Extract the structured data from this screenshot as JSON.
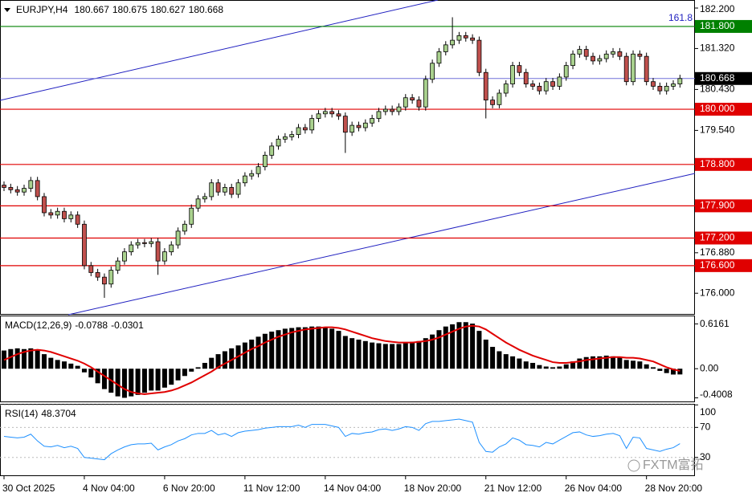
{
  "chart_data": [
    {
      "type": "candlestick",
      "symbol": "EURJPY,H4",
      "ohlc": [
        180.667,
        180.675,
        180.627,
        180.668
      ],
      "categories": [
        "30 Oct 2025",
        null,
        null,
        null,
        null,
        null,
        null,
        null,
        null,
        null,
        null,
        null,
        "4 Nov 04:00",
        null,
        null,
        null,
        null,
        null,
        null,
        null,
        null,
        null,
        null,
        null,
        "6 Nov 20:00",
        null,
        null,
        null,
        null,
        null,
        null,
        null,
        null,
        null,
        null,
        null,
        "11 Nov 12:00",
        null,
        null,
        null,
        null,
        null,
        null,
        null,
        null,
        null,
        null,
        null,
        "14 Nov 04:00",
        null,
        null,
        null,
        null,
        null,
        null,
        null,
        null,
        null,
        null,
        null,
        "18 Nov 20:00",
        null,
        null,
        null,
        null,
        null,
        null,
        null,
        null,
        null,
        null,
        null,
        "21 Nov 12:00",
        null,
        null,
        null,
        null,
        null,
        null,
        null,
        null,
        null,
        null,
        null,
        "26 Nov 04:00",
        null,
        null,
        null,
        null,
        null,
        null,
        null,
        null,
        null,
        null,
        null,
        "28 Nov 20:00",
        null,
        null,
        null,
        null,
        null
      ],
      "open": [
        178.35,
        178.3,
        178.25,
        178.2,
        178.28,
        178.45,
        178.1,
        177.75,
        177.7,
        177.78,
        177.62,
        177.7,
        177.5,
        176.6,
        176.45,
        176.35,
        176.2,
        176.5,
        176.7,
        176.9,
        177.05,
        177.1,
        177.08,
        177.12,
        176.7,
        176.9,
        177.05,
        177.35,
        177.5,
        177.85,
        178.05,
        178.1,
        178.4,
        178.2,
        178.3,
        178.15,
        178.4,
        178.55,
        178.6,
        178.75,
        179.0,
        179.2,
        179.35,
        179.4,
        179.45,
        179.6,
        179.55,
        179.8,
        179.9,
        179.95,
        179.9,
        179.85,
        179.5,
        179.65,
        179.6,
        179.7,
        179.8,
        179.95,
        180.0,
        179.95,
        180.05,
        180.25,
        180.2,
        180.05,
        180.65,
        181.0,
        181.25,
        181.4,
        181.5,
        181.6,
        181.55,
        181.5,
        180.8,
        180.2,
        180.1,
        180.35,
        180.55,
        180.95,
        180.8,
        180.55,
        180.5,
        180.4,
        180.6,
        180.5,
        180.7,
        180.95,
        181.2,
        181.3,
        181.15,
        181.05,
        181.1,
        181.2,
        181.25,
        181.15,
        180.6,
        181.2,
        181.15,
        180.6,
        180.5,
        180.4,
        180.5,
        180.55
      ],
      "high": [
        178.43,
        178.38,
        178.33,
        178.36,
        178.53,
        178.53,
        178.18,
        177.83,
        177.86,
        177.86,
        177.78,
        177.78,
        177.58,
        176.68,
        176.53,
        176.43,
        176.58,
        176.78,
        176.98,
        177.13,
        177.18,
        177.18,
        177.2,
        177.2,
        176.98,
        177.13,
        177.43,
        177.58,
        177.93,
        178.13,
        178.18,
        178.48,
        178.48,
        178.38,
        178.38,
        178.48,
        178.63,
        178.68,
        178.83,
        179.08,
        179.28,
        179.43,
        179.48,
        179.53,
        179.68,
        179.68,
        179.88,
        179.98,
        180.03,
        180.03,
        179.98,
        179.93,
        179.73,
        179.73,
        179.78,
        179.88,
        180.03,
        180.08,
        180.08,
        180.13,
        180.33,
        180.33,
        180.28,
        180.73,
        181.08,
        181.33,
        181.48,
        182.0,
        181.68,
        181.68,
        181.63,
        181.58,
        180.88,
        180.28,
        180.43,
        180.63,
        181.03,
        181.03,
        180.88,
        180.63,
        180.58,
        180.68,
        180.68,
        180.78,
        181.03,
        181.28,
        181.38,
        181.38,
        181.23,
        181.18,
        181.28,
        181.33,
        181.33,
        181.23,
        181.28,
        181.28,
        181.23,
        180.68,
        180.58,
        180.58,
        180.63,
        180.75
      ],
      "low": [
        178.22,
        178.17,
        178.12,
        178.12,
        178.2,
        178.02,
        177.67,
        177.62,
        177.62,
        177.54,
        177.54,
        177.42,
        176.52,
        176.37,
        176.27,
        175.9,
        176.12,
        176.42,
        176.62,
        176.82,
        176.97,
        177.0,
        177.0,
        176.4,
        176.62,
        176.82,
        176.97,
        177.27,
        177.42,
        177.77,
        177.97,
        178.02,
        178.12,
        178.12,
        178.07,
        178.07,
        178.32,
        178.47,
        178.52,
        178.67,
        178.92,
        179.12,
        179.27,
        179.32,
        179.37,
        179.47,
        179.47,
        179.72,
        179.82,
        179.82,
        179.77,
        179.05,
        179.42,
        179.52,
        179.52,
        179.62,
        179.72,
        179.87,
        179.87,
        179.87,
        179.97,
        180.12,
        179.97,
        179.97,
        180.57,
        180.92,
        181.17,
        181.32,
        181.42,
        181.47,
        181.42,
        180.72,
        179.8,
        180.02,
        180.02,
        180.27,
        180.47,
        180.72,
        180.47,
        180.42,
        180.32,
        180.32,
        180.42,
        180.42,
        180.62,
        180.87,
        181.12,
        181.07,
        180.97,
        180.97,
        181.02,
        181.12,
        181.07,
        180.52,
        180.52,
        181.07,
        180.52,
        180.42,
        180.32,
        180.32,
        180.42,
        180.47
      ],
      "close": [
        178.3,
        178.25,
        178.2,
        178.28,
        178.45,
        178.1,
        177.75,
        177.7,
        177.78,
        177.62,
        177.7,
        177.5,
        176.6,
        176.45,
        176.35,
        176.2,
        176.5,
        176.7,
        176.9,
        177.05,
        177.1,
        177.08,
        177.12,
        176.7,
        176.9,
        177.05,
        177.35,
        177.5,
        177.85,
        178.05,
        178.1,
        178.4,
        178.2,
        178.3,
        178.15,
        178.4,
        178.55,
        178.6,
        178.75,
        179.0,
        179.2,
        179.35,
        179.4,
        179.45,
        179.6,
        179.55,
        179.8,
        179.9,
        179.95,
        179.9,
        179.85,
        179.5,
        179.65,
        179.6,
        179.7,
        179.8,
        179.95,
        180.0,
        179.95,
        180.05,
        180.25,
        180.2,
        180.05,
        180.65,
        181.0,
        181.25,
        181.4,
        181.5,
        181.6,
        181.55,
        181.5,
        180.8,
        180.2,
        180.1,
        180.35,
        180.55,
        180.95,
        180.8,
        180.55,
        180.5,
        180.4,
        180.6,
        180.5,
        180.7,
        180.95,
        181.2,
        181.3,
        181.15,
        181.05,
        181.1,
        181.2,
        181.25,
        181.15,
        180.6,
        181.2,
        181.15,
        180.6,
        180.5,
        180.4,
        180.5,
        180.55,
        180.668
      ],
      "up_color": "#a9d18e",
      "down_color": "#c0504d",
      "ylim": [
        175.55,
        182.34
      ],
      "yticks": [
        {
          "value": 182.2,
          "label": "182.200"
        },
        {
          "value": 181.32,
          "label": "181.320"
        },
        {
          "value": 180.43,
          "label": "180.430"
        },
        {
          "value": 179.54,
          "label": "179.540"
        },
        {
          "value": 176.88,
          "label": "176.880"
        },
        {
          "value": 176.0,
          "label": "176.000"
        }
      ],
      "levels": [
        {
          "value": 181.8,
          "label": "181.800",
          "color": "#008000"
        },
        {
          "value": 180.0,
          "label": "180.000",
          "color": "#e00000"
        },
        {
          "value": 178.8,
          "label": "178.800",
          "color": "#e00000"
        },
        {
          "value": 177.9,
          "label": "177.900",
          "color": "#e00000"
        },
        {
          "value": 177.2,
          "label": "177.200",
          "color": "#e00000"
        },
        {
          "value": 176.6,
          "label": "176.600",
          "color": "#e00000"
        }
      ],
      "price_line": {
        "value": 180.668,
        "label": "180.668",
        "color": "#7070d8"
      },
      "annotation": "161.8"
    },
    {
      "type": "macd",
      "title": "MACD(12,26,9)",
      "readout": [
        -0.0788,
        -0.0301
      ],
      "series": [
        {
          "name": "MACD",
          "color": "#000000",
          "values": [
            0.25,
            0.27,
            0.28,
            0.27,
            0.28,
            0.25,
            0.2,
            0.15,
            0.12,
            0.1,
            0.07,
            0.04,
            -0.05,
            -0.12,
            -0.2,
            -0.28,
            -0.33,
            -0.38,
            -0.4,
            -0.38,
            -0.36,
            -0.33,
            -0.3,
            -0.3,
            -0.26,
            -0.22,
            -0.16,
            -0.1,
            -0.04,
            0.02,
            0.08,
            0.15,
            0.2,
            0.24,
            0.28,
            0.32,
            0.36,
            0.4,
            0.44,
            0.48,
            0.51,
            0.53,
            0.55,
            0.56,
            0.57,
            0.57,
            0.58,
            0.58,
            0.57,
            0.55,
            0.52,
            0.45,
            0.42,
            0.4,
            0.38,
            0.36,
            0.35,
            0.34,
            0.34,
            0.34,
            0.35,
            0.37,
            0.38,
            0.42,
            0.47,
            0.53,
            0.58,
            0.61,
            0.64,
            0.64,
            0.62,
            0.52,
            0.4,
            0.3,
            0.24,
            0.2,
            0.17,
            0.14,
            0.1,
            0.08,
            0.05,
            0.03,
            0.02,
            0.03,
            0.06,
            0.1,
            0.14,
            0.16,
            0.17,
            0.17,
            0.18,
            0.17,
            0.16,
            0.12,
            0.11,
            0.1,
            0.06,
            0.02,
            -0.03,
            -0.06,
            -0.08,
            -0.0788
          ]
        },
        {
          "name": "Signal",
          "color": "#e00000",
          "values": [
            0.12,
            0.16,
            0.2,
            0.23,
            0.25,
            0.26,
            0.25,
            0.23,
            0.2,
            0.17,
            0.14,
            0.11,
            0.07,
            0.02,
            -0.04,
            -0.1,
            -0.16,
            -0.22,
            -0.28,
            -0.32,
            -0.34,
            -0.35,
            -0.34,
            -0.33,
            -0.32,
            -0.3,
            -0.27,
            -0.23,
            -0.19,
            -0.14,
            -0.09,
            -0.04,
            0.02,
            0.07,
            0.12,
            0.17,
            0.22,
            0.27,
            0.31,
            0.36,
            0.4,
            0.44,
            0.47,
            0.5,
            0.52,
            0.54,
            0.55,
            0.56,
            0.57,
            0.57,
            0.56,
            0.54,
            0.51,
            0.48,
            0.45,
            0.42,
            0.4,
            0.38,
            0.37,
            0.36,
            0.36,
            0.36,
            0.37,
            0.38,
            0.4,
            0.43,
            0.47,
            0.51,
            0.55,
            0.58,
            0.59,
            0.58,
            0.54,
            0.48,
            0.42,
            0.36,
            0.31,
            0.26,
            0.22,
            0.18,
            0.15,
            0.12,
            0.09,
            0.08,
            0.08,
            0.09,
            0.1,
            0.12,
            0.13,
            0.14,
            0.15,
            0.16,
            0.16,
            0.15,
            0.15,
            0.14,
            0.12,
            0.1,
            0.06,
            0.02,
            -0.01,
            -0.0301
          ]
        }
      ],
      "ylim": [
        -0.45,
        0.72
      ],
      "yticks": [
        0.6161,
        {
          "value": 0,
          "label": "0.00"
        },
        -0.4008
      ]
    },
    {
      "type": "rsi",
      "title": "RSI(14)",
      "readout": 48.3704,
      "color": "#1e90ff",
      "values": [
        58,
        57,
        56,
        57,
        61,
        52,
        45,
        44,
        46,
        43,
        45,
        42,
        30,
        29,
        28,
        27,
        35,
        40,
        44,
        47,
        48,
        48,
        49,
        40,
        44,
        47,
        52,
        55,
        60,
        62,
        62,
        66,
        60,
        62,
        58,
        63,
        65,
        66,
        67,
        69,
        70,
        71,
        71,
        71,
        73,
        70,
        74,
        74,
        74,
        72,
        70,
        58,
        62,
        61,
        63,
        64,
        67,
        68,
        66,
        68,
        71,
        70,
        66,
        75,
        78,
        78,
        79,
        80,
        81,
        79,
        77,
        50,
        38,
        37,
        44,
        48,
        56,
        53,
        47,
        46,
        44,
        50,
        48,
        53,
        58,
        63,
        64,
        60,
        58,
        59,
        61,
        62,
        59,
        42,
        57,
        56,
        42,
        40,
        38,
        41,
        43,
        48.3704
      ],
      "ylim": [
        6.2,
        100.3
      ],
      "yticks": [
        100,
        70,
        30
      ]
    }
  ],
  "watermark": "FXTM富拓"
}
